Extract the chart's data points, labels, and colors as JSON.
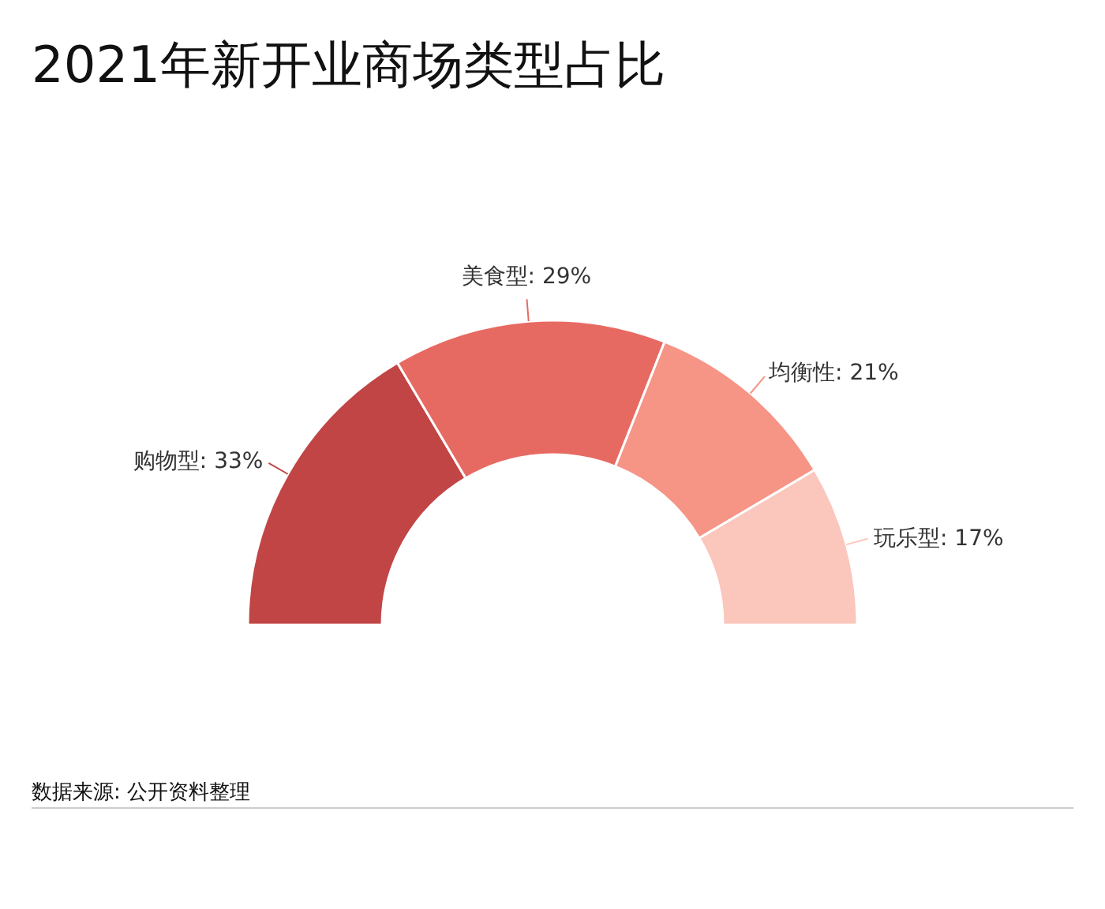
{
  "chart_data": {
    "type": "donut",
    "title": "2021年新开业商场类型占比",
    "categories": [
      "购物型",
      "美食型",
      "均衡性",
      "玩乐型"
    ],
    "values": [
      33,
      29,
      21,
      17
    ],
    "colors": [
      "#c14545",
      "#e76a62",
      "#f69486",
      "#fbc6bc"
    ],
    "value_labels": [
      ": 33%",
      ": 29%",
      ": 21%",
      ": 17%"
    ],
    "annotations": [
      "数据来源: 公开资料整理"
    ]
  }
}
